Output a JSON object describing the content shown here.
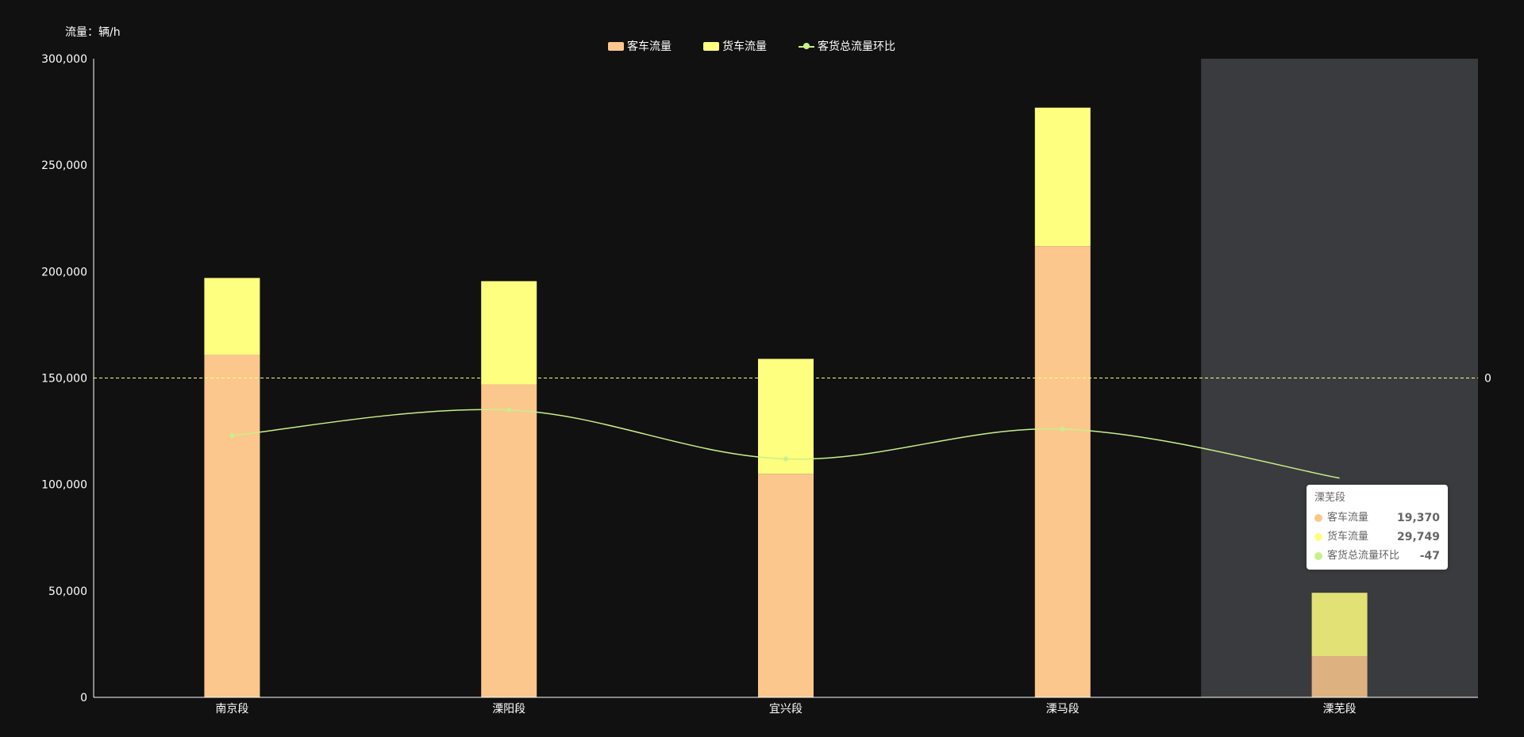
{
  "unit_label": "流量：辆/h",
  "legend": {
    "passenger": "客车流量",
    "freight": "货车流量",
    "ratio": "客货总流量环比"
  },
  "colors": {
    "background": "#111111",
    "passenger": "#fbc78d",
    "freight": "#ffff7f",
    "ratio": "#c8f08a",
    "highlight": "#3a3b3e",
    "axis": "#ffffff",
    "markline": "#ffff7f"
  },
  "tooltip": {
    "title": "溧芜段",
    "rows": [
      {
        "name": "客车流量",
        "value": "19,370",
        "color": "#fbc78d"
      },
      {
        "name": "货车流量",
        "value": "29,749",
        "color": "#ffff7f"
      },
      {
        "name": "客货总流量环比",
        "value": "-47",
        "color": "#c8f08a"
      }
    ]
  },
  "chart_data": {
    "type": "bar",
    "stacked": true,
    "categories": [
      "南京段",
      "溧阳段",
      "宜兴段",
      "溧马段",
      "溧芜段"
    ],
    "series": [
      {
        "name": "客车流量",
        "type": "bar",
        "axis": "left",
        "values": [
          161000,
          147000,
          105000,
          212000,
          19370
        ]
      },
      {
        "name": "货车流量",
        "type": "bar",
        "axis": "left",
        "values": [
          36000,
          48500,
          54000,
          65000,
          29749
        ]
      },
      {
        "name": "客货总流量环比",
        "type": "line",
        "axis": "right",
        "values": [
          -27,
          -15,
          -38,
          -24,
          -47
        ]
      }
    ],
    "ylim": [
      0,
      300000
    ],
    "yticks": [
      0,
      50000,
      100000,
      150000,
      200000,
      250000,
      300000
    ],
    "ytick_labels": [
      "0",
      "50,000",
      "100,000",
      "150,000",
      "200,000",
      "250,000",
      "300,000"
    ],
    "y2_min": -150,
    "y2_max": 150,
    "y2_markline_value": 0,
    "y2_markline_label": "0",
    "highlighted_category": "溧芜段"
  }
}
